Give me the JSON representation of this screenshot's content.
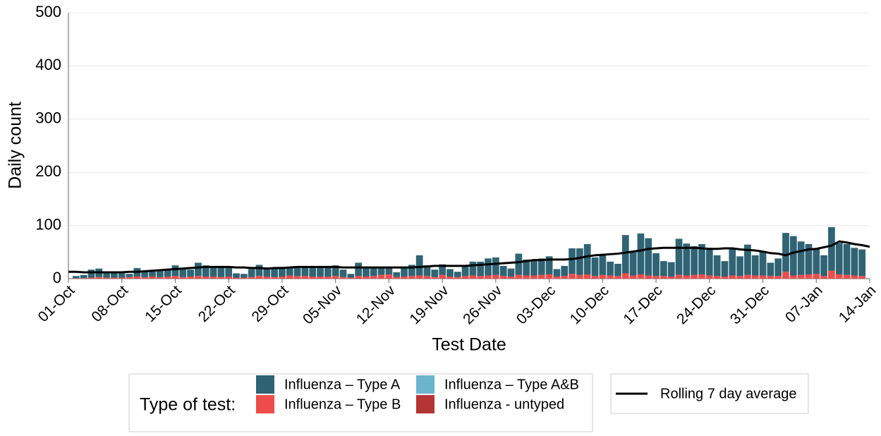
{
  "chart_data": {
    "type": "bar",
    "x_label": "Test Date",
    "y_label": "Daily count",
    "legend_title": "Type of test:",
    "categories": [
      "01-Oct",
      null,
      null,
      null,
      null,
      null,
      null,
      "08-Oct",
      null,
      null,
      null,
      null,
      null,
      null,
      "15-Oct",
      null,
      null,
      null,
      null,
      null,
      null,
      "22-Oct",
      null,
      null,
      null,
      null,
      null,
      null,
      "29-Oct",
      null,
      null,
      null,
      null,
      null,
      null,
      "05-Nov",
      null,
      null,
      null,
      null,
      null,
      null,
      "12-Nov",
      null,
      null,
      null,
      null,
      null,
      null,
      "19-Nov",
      null,
      null,
      null,
      null,
      null,
      null,
      "26-Nov",
      null,
      null,
      null,
      null,
      null,
      null,
      "03-Dec",
      null,
      null,
      null,
      null,
      null,
      null,
      "10-Dec",
      null,
      null,
      null,
      null,
      null,
      null,
      "17-Dec",
      null,
      null,
      null,
      null,
      null,
      null,
      "24-Dec",
      null,
      null,
      null,
      null,
      null,
      null,
      "31-Dec",
      null,
      null,
      null,
      null,
      null,
      null,
      "07-Jan",
      null,
      null,
      null,
      null,
      null,
      null,
      "14-Jan"
    ],
    "series": [
      {
        "name": "Influenza – Type B",
        "type": "bar",
        "color": "#ee4b4b",
        "values": [
          0,
          1,
          1,
          2,
          3,
          2,
          2,
          2,
          3,
          4,
          3,
          4,
          3,
          4,
          5,
          3,
          4,
          5,
          4,
          4,
          3,
          4,
          2,
          2,
          3,
          5,
          4,
          3,
          4,
          6,
          5,
          5,
          4,
          4,
          4,
          5,
          3,
          2,
          5,
          4,
          5,
          7,
          8,
          3,
          4,
          5,
          6,
          5,
          3,
          7,
          4,
          3,
          5,
          6,
          5,
          6,
          7,
          5,
          4,
          7,
          6,
          6,
          7,
          8,
          4,
          5,
          9,
          7,
          8,
          5,
          7,
          6,
          5,
          10,
          6,
          8,
          6,
          5,
          5,
          4,
          7,
          6,
          7,
          8,
          6,
          5,
          4,
          6,
          5,
          7,
          6,
          6,
          5,
          5,
          13,
          6,
          7,
          8,
          9,
          5,
          15,
          8,
          7,
          6,
          5,
          0
        ]
      },
      {
        "name": "Influenza – Type A",
        "type": "bar",
        "color": "#306474",
        "values": [
          0,
          4,
          6,
          15,
          16,
          10,
          8,
          8,
          6,
          16,
          12,
          10,
          13,
          14,
          20,
          15,
          13,
          25,
          21,
          19,
          19,
          17,
          8,
          7,
          15,
          21,
          16,
          17,
          18,
          14,
          15,
          17,
          19,
          17,
          18,
          20,
          14,
          7,
          25,
          16,
          17,
          15,
          12,
          9,
          17,
          21,
          38,
          20,
          14,
          20,
          14,
          10,
          19,
          26,
          27,
          32,
          33,
          19,
          15,
          40,
          30,
          30,
          31,
          34,
          14,
          19,
          48,
          50,
          57,
          35,
          39,
          26,
          23,
          72,
          44,
          77,
          70,
          43,
          28,
          27,
          68,
          60,
          54,
          57,
          50,
          39,
          29,
          51,
          37,
          57,
          38,
          46,
          25,
          33,
          73,
          74,
          63,
          57,
          48,
          39,
          82,
          59,
          58,
          52,
          50,
          0
        ]
      },
      {
        "name": "Influenza – Type A&B",
        "type": "bar",
        "color": "#6bb5cc",
        "values": [
          0,
          0,
          0,
          0,
          0,
          0,
          0,
          0,
          0,
          0,
          0,
          0,
          0,
          0,
          0,
          0,
          0,
          0,
          0,
          0,
          0,
          0,
          0,
          0,
          0,
          0,
          0,
          0,
          0,
          0,
          0,
          0,
          0,
          0,
          0,
          0,
          0,
          0,
          0,
          0,
          0,
          0,
          0,
          0,
          0,
          0,
          0,
          0,
          0,
          0,
          0,
          0,
          0,
          0,
          0,
          0,
          0,
          0,
          0,
          0,
          0,
          0,
          0,
          0,
          0,
          0,
          0,
          0,
          0,
          0,
          0,
          0,
          0,
          0,
          0,
          0,
          0,
          0,
          0,
          0,
          0,
          0,
          0,
          0,
          0,
          0,
          0,
          0,
          0,
          0,
          0,
          0,
          0,
          0,
          0,
          0,
          0,
          0,
          0,
          0,
          0,
          0,
          0,
          0,
          0,
          0
        ]
      },
      {
        "name": "Influenza - untyped",
        "type": "bar",
        "color": "#b53434",
        "values": [
          0,
          0,
          0,
          0,
          0,
          0,
          0,
          0,
          0,
          0,
          0,
          0,
          0,
          0,
          0,
          0,
          0,
          0,
          0,
          0,
          0,
          0,
          0,
          0,
          0,
          0,
          0,
          0,
          0,
          0,
          0,
          0,
          0,
          0,
          0,
          0,
          0,
          0,
          0,
          0,
          0,
          0,
          0,
          0,
          0,
          0,
          0,
          0,
          0,
          0,
          0,
          0,
          0,
          0,
          0,
          0,
          0,
          0,
          0,
          0,
          0,
          0,
          0,
          0,
          0,
          0,
          0,
          0,
          0,
          0,
          0,
          0,
          0,
          0,
          0,
          0,
          0,
          0,
          0,
          0,
          0,
          0,
          0,
          0,
          0,
          0,
          0,
          0,
          0,
          0,
          0,
          0,
          0,
          0,
          0,
          0,
          0,
          0,
          0,
          0,
          0,
          0,
          0,
          0,
          0,
          0
        ]
      },
      {
        "name": "Rolling 7 day average",
        "type": "line",
        "color": "#000000",
        "values": [
          13,
          13,
          12,
          12,
          12,
          12,
          12,
          12,
          13,
          13,
          14,
          15,
          16,
          17,
          18,
          19,
          20,
          21,
          22,
          22,
          22,
          22,
          21,
          21,
          20,
          20,
          19,
          20,
          20,
          21,
          22,
          22,
          22,
          22,
          22,
          22,
          21,
          21,
          21,
          21,
          21,
          21,
          21,
          21,
          21,
          21,
          22,
          23,
          24,
          24,
          24,
          24,
          24,
          25,
          26,
          27,
          28,
          29,
          30,
          31,
          33,
          35,
          35,
          36,
          36,
          36,
          37,
          39,
          42,
          44,
          45,
          46,
          47,
          49,
          51,
          53,
          56,
          57,
          58,
          58,
          58,
          58,
          58,
          57,
          56,
          56,
          57,
          57,
          55,
          54,
          53,
          51,
          48,
          47,
          44,
          49,
          52,
          55,
          56,
          59,
          62,
          70,
          68,
          65,
          63,
          60
        ]
      }
    ],
    "ylim": [
      0,
      500
    ],
    "yticks": [
      0,
      100,
      200,
      300,
      400,
      500
    ],
    "grid": true
  }
}
